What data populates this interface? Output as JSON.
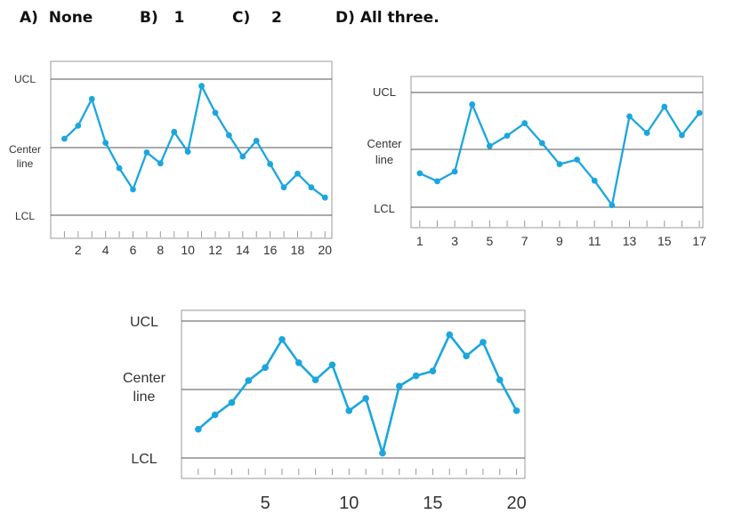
{
  "answer_choices": [
    {
      "label": "A)",
      "text": "None"
    },
    {
      "label": "B)",
      "text": "1"
    },
    {
      "label": "C)",
      "text": "2"
    },
    {
      "label": "D)",
      "text": "All three."
    }
  ],
  "colors": {
    "line": "#1ba6dd",
    "frame": "#999999",
    "ref_line": "#555555",
    "text": "#333333"
  },
  "chart_data": [
    {
      "type": "line",
      "title": "",
      "control_labels": {
        "ucl": "UCL",
        "center": [
          "Center",
          "line"
        ],
        "lcl": "LCL"
      },
      "ylim": [
        -1,
        1
      ],
      "reference_lines": {
        "ucl": 1,
        "center": 0,
        "lcl": -1
      },
      "xlim": [
        0,
        20.5
      ],
      "xticks": [
        2,
        4,
        6,
        8,
        10,
        12,
        14,
        16,
        18,
        20
      ],
      "xtick_labels": [
        "2",
        "4",
        "6",
        "8",
        "10",
        "12",
        "14",
        "16",
        "18",
        "20"
      ],
      "minor_ticks": [
        1,
        2,
        3,
        4,
        5,
        6,
        7,
        8,
        9,
        10,
        11,
        12,
        13,
        14,
        15,
        16,
        17,
        18,
        19,
        20
      ],
      "x": [
        1,
        2,
        3,
        4,
        5,
        6,
        7,
        8,
        9,
        10,
        11,
        12,
        13,
        14,
        15,
        16,
        17,
        18,
        19,
        20
      ],
      "y": [
        0.13,
        0.32,
        0.71,
        0.07,
        -0.3,
        -0.61,
        -0.07,
        -0.23,
        0.23,
        -0.06,
        0.9,
        0.51,
        0.18,
        -0.13,
        0.1,
        -0.24,
        -0.58,
        -0.38,
        -0.58,
        -0.73
      ]
    },
    {
      "type": "line",
      "title": "",
      "control_labels": {
        "ucl": "UCL",
        "center": [
          "Center",
          "line"
        ],
        "lcl": "LCL"
      },
      "ylim": [
        -1,
        1
      ],
      "reference_lines": {
        "ucl": 1,
        "center": 0,
        "lcl": -1
      },
      "xlim": [
        0.5,
        17.2
      ],
      "xticks": [
        1,
        3,
        5,
        7,
        9,
        11,
        13,
        15,
        17
      ],
      "xtick_labels": [
        "1",
        "3",
        "5",
        "7",
        "9",
        "11",
        "13",
        "15",
        "17"
      ],
      "minor_ticks": [
        1,
        2,
        3,
        4,
        5,
        6,
        7,
        8,
        9,
        10,
        11,
        12,
        13,
        14,
        15,
        16,
        17
      ],
      "x": [
        1,
        2,
        3,
        4,
        5,
        6,
        7,
        8,
        9,
        10,
        11,
        12,
        13,
        14,
        15,
        16,
        17
      ],
      "y": [
        -0.42,
        -0.56,
        -0.39,
        0.79,
        0.06,
        0.24,
        0.46,
        0.11,
        -0.26,
        -0.18,
        -0.55,
        -0.98,
        0.58,
        0.29,
        0.75,
        0.25,
        0.64
      ]
    },
    {
      "type": "line",
      "title": "",
      "control_labels": {
        "ucl": "UCL",
        "center": [
          "Center",
          "line"
        ],
        "lcl": "LCL"
      },
      "ylim": [
        -1,
        1
      ],
      "reference_lines": {
        "ucl": 1,
        "center": 0,
        "lcl": -1
      },
      "xlim": [
        0,
        20.5
      ],
      "xticks": [
        5,
        10,
        15,
        20
      ],
      "xtick_labels": [
        "5",
        "10",
        "15",
        "20"
      ],
      "minor_ticks": [
        1,
        2,
        3,
        4,
        5,
        6,
        7,
        8,
        9,
        10,
        11,
        12,
        13,
        14,
        15,
        16,
        17,
        18,
        19,
        20
      ],
      "x": [
        1,
        2,
        3,
        4,
        5,
        6,
        7,
        8,
        9,
        10,
        11,
        12,
        13,
        14,
        15,
        16,
        17,
        18,
        19,
        20
      ],
      "y": [
        -0.58,
        -0.37,
        -0.19,
        0.13,
        0.32,
        0.73,
        0.39,
        0.14,
        0.36,
        -0.31,
        -0.13,
        -0.93,
        0.05,
        0.2,
        0.27,
        0.8,
        0.49,
        0.69,
        0.14,
        -0.31
      ]
    }
  ]
}
